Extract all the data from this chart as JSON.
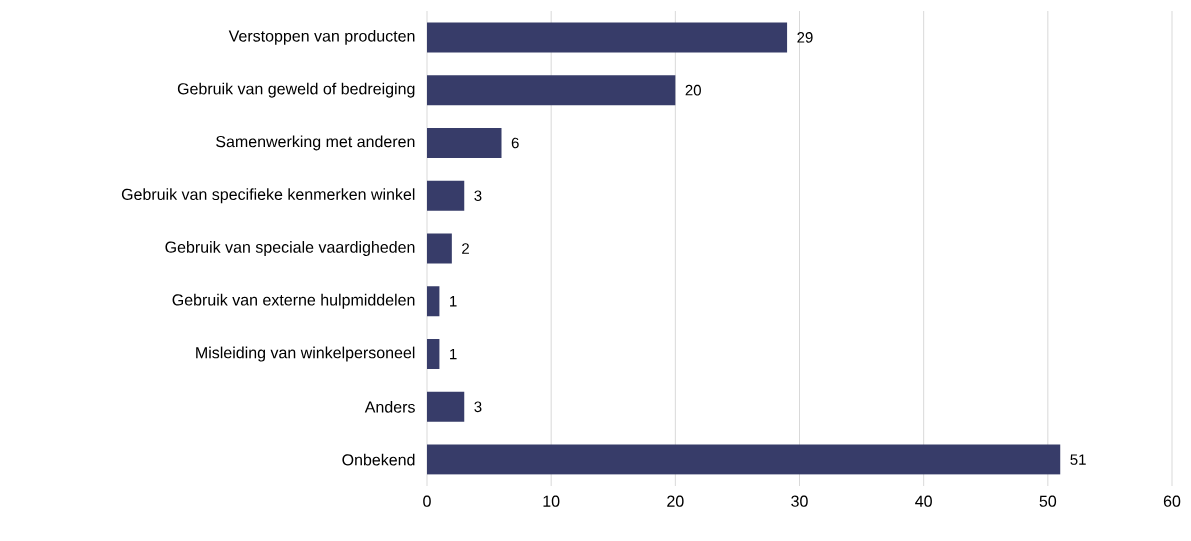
{
  "chart_data": {
    "type": "bar",
    "orientation": "horizontal",
    "categories": [
      "Verstoppen van producten",
      "Gebruik van geweld of bedreiging",
      "Samenwerking met anderen",
      "Gebruik van specifieke kenmerken winkel",
      "Gebruik van speciale vaardigheden",
      "Gebruik van externe hulpmiddelen",
      "Misleiding van winkelpersoneel",
      "Anders",
      "Onbekend"
    ],
    "values": [
      29,
      20,
      6,
      3,
      2,
      1,
      1,
      3,
      51
    ],
    "color": "#373c69",
    "xlim": [
      0,
      60
    ],
    "xticks": [
      0,
      10,
      20,
      30,
      40,
      50,
      60
    ],
    "grid": "x",
    "data_labels": true
  }
}
